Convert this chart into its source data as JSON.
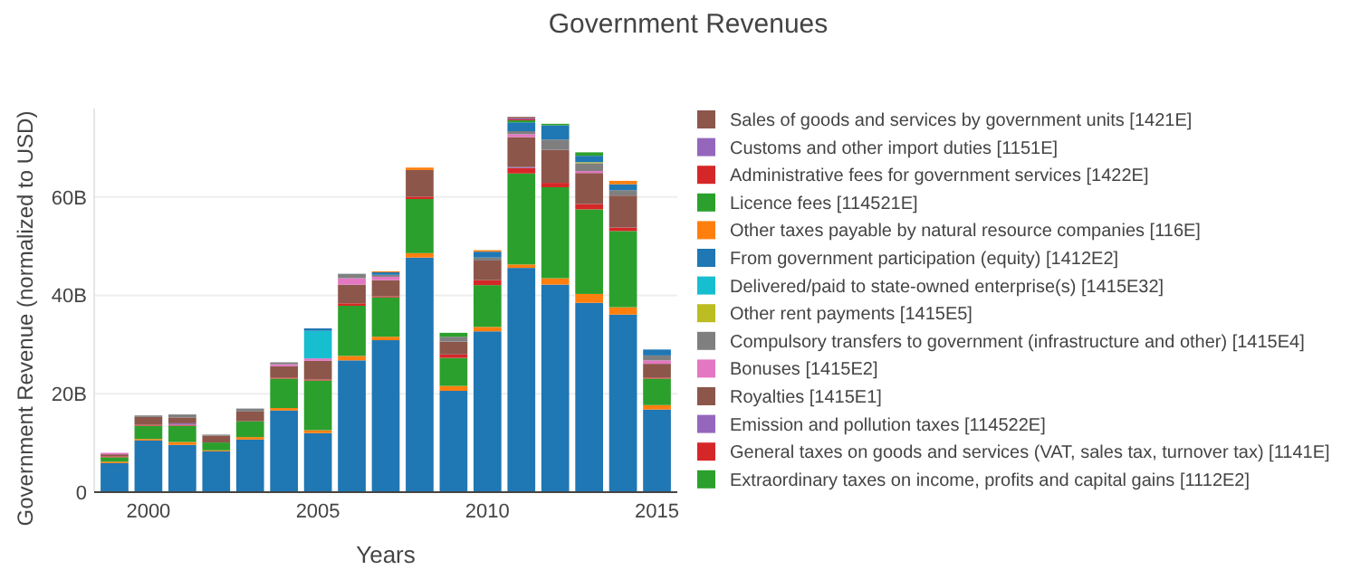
{
  "chart_data": {
    "type": "bar",
    "stacked": true,
    "title": "Government Revenues",
    "xlabel": "Years",
    "ylabel": "Government Revenue (normalized to USD)",
    "x": [
      1999,
      2000,
      2001,
      2002,
      2003,
      2004,
      2005,
      2006,
      2007,
      2008,
      2009,
      2010,
      2011,
      2012,
      2013,
      2014,
      2015
    ],
    "xlim": [
      1998.4,
      2015.6
    ],
    "xticks": [
      2000,
      2005,
      2010,
      2015
    ],
    "ylim": [
      0,
      78
    ],
    "yticks": [
      0,
      {
        "value": 20,
        "label": "20B"
      },
      {
        "value": 40,
        "label": "40B"
      },
      {
        "value": 60,
        "label": "60B"
      }
    ],
    "grid": "y",
    "legend": "right",
    "series": [
      {
        "color": "#1f77b4",
        "values": [
          5.9,
          10.5,
          9.6,
          8.3,
          10.7,
          16.6,
          12,
          26.8,
          30.9,
          47.7,
          20.6,
          32.7,
          45.6,
          42.2,
          38.5,
          36.1,
          16.8
        ]
      },
      {
        "color": "#ff7f0e",
        "values": [
          0.3,
          0.3,
          0.6,
          0.2,
          0.5,
          0.5,
          0.6,
          0.9,
          0.7,
          0.9,
          1.0,
          0.9,
          0.7,
          1.3,
          1.8,
          1.5,
          0.9
        ]
      },
      {
        "name": "Extraordinary taxes on income, profits and capital gains [1112E2]",
        "color": "#2ca02c",
        "values": [
          0.9,
          2.7,
          3.3,
          1.6,
          3.2,
          6.0,
          10.1,
          10.2,
          8.0,
          11,
          5.7,
          8.5,
          18.5,
          18.5,
          17.2,
          15.5,
          5.4
        ]
      },
      {
        "name": "General taxes on goods and services (VAT, sales tax, turnover tax) [1141E]",
        "color": "#d62728",
        "values": [
          0.2,
          0.2,
          0.2,
          null,
          null,
          0.2,
          0.2,
          0.5,
          0.2,
          0.5,
          0.7,
          1.0,
          1.1,
          0.9,
          1.1,
          0.7,
          0.2
        ]
      },
      {
        "name": "Emission and pollution taxes [114522E]",
        "color": "#9467bd",
        "values": [
          null,
          null,
          0.3,
          null,
          null,
          null,
          null,
          null,
          null,
          null,
          null,
          null,
          0.2,
          null,
          null,
          null,
          null
        ]
      },
      {
        "name": "Royalties [1415E1]",
        "color": "#8c564b",
        "values": [
          0.4,
          1.6,
          1.2,
          1.4,
          2.0,
          2.3,
          3.8,
          3.8,
          3.3,
          5.4,
          2.6,
          4.0,
          6.1,
          6.7,
          6.3,
          6.5,
          2.8
        ]
      },
      {
        "name": "Bonuses [1415E2]",
        "color": "#e377c2",
        "values": [
          0.3,
          null,
          null,
          null,
          null,
          0.4,
          0.5,
          1.3,
          0.7,
          null,
          null,
          null,
          0.6,
          null,
          0.4,
          null,
          0.7
        ]
      },
      {
        "name": "Compulsory transfers to government (infrastructure and other) [1415E4]",
        "color": "#7f7f7f",
        "values": [
          null,
          0.3,
          0.6,
          0.2,
          0.6,
          0.4,
          null,
          0.9,
          0.4,
          null,
          1.0,
          0.6,
          0.6,
          2.1,
          1.6,
          1.1,
          1.0
        ]
      },
      {
        "name": "Other rent payments [1415E5]",
        "color": "#bcbd22",
        "values": [
          null,
          null,
          null,
          null,
          null,
          null,
          null,
          null,
          null,
          null,
          null,
          null,
          null,
          null,
          0.2,
          null,
          null
        ]
      },
      {
        "name": "Delivered/paid to state-owned enterprise(s) [1415E32]",
        "color": "#17becf",
        "values": [
          null,
          null,
          null,
          null,
          null,
          null,
          5.6,
          null,
          null,
          null,
          null,
          null,
          null,
          null,
          null,
          null,
          null
        ]
      },
      {
        "name": "From government participation (equity) [1412E2]",
        "color": "#1f77b4",
        "values": [
          null,
          null,
          null,
          null,
          null,
          null,
          0.5,
          null,
          0.5,
          null,
          null,
          1.2,
          1.8,
          2.9,
          1.3,
          1.2,
          1.2
        ]
      },
      {
        "name": "Other taxes payable by natural resource companies [116E]",
        "color": "#ff7f0e",
        "values": [
          null,
          null,
          null,
          null,
          null,
          null,
          null,
          null,
          0.2,
          0.5,
          null,
          0.3,
          null,
          null,
          null,
          0.7,
          null
        ]
      },
      {
        "name": "Licence fees [114521E]",
        "color": "#2ca02c",
        "values": [
          null,
          null,
          null,
          null,
          null,
          null,
          null,
          null,
          null,
          null,
          0.8,
          null,
          0.4,
          0.3,
          0.7,
          null,
          null
        ]
      },
      {
        "name": "Administrative fees for government services [1422E]",
        "color": "#d62728",
        "values": [
          null,
          null,
          null,
          null,
          null,
          null,
          null,
          null,
          null,
          null,
          null,
          null,
          0.2,
          null,
          null,
          null,
          null
        ]
      },
      {
        "name": "Customs and other import duties [1151E]",
        "color": "#9467bd",
        "values": [
          null,
          null,
          null,
          null,
          null,
          null,
          null,
          null,
          null,
          null,
          null,
          null,
          0.2,
          null,
          null,
          null,
          null
        ]
      },
      {
        "name": "Sales of goods and services by government units [1421E]",
        "color": "#8c564b",
        "values": [
          null,
          null,
          null,
          null,
          null,
          null,
          null,
          null,
          null,
          null,
          null,
          null,
          0.3,
          null,
          null,
          null,
          null
        ]
      }
    ]
  }
}
